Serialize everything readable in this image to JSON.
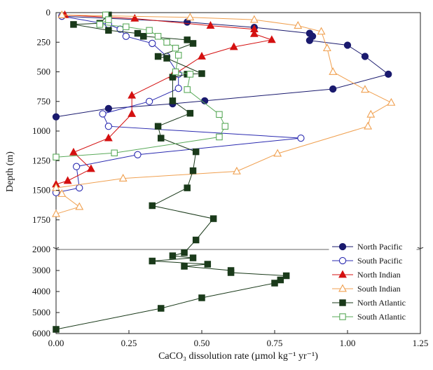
{
  "chart_data": {
    "type": "line",
    "title": "",
    "xlabel": "CaCO₃ dissolution rate (µmol kg⁻¹ yr⁻¹)",
    "ylabel": "Depth (m)",
    "xlim": [
      0,
      1.25
    ],
    "x_ticks": [
      "0.00",
      "0.25",
      "0.50",
      "0.75",
      "1.00",
      "1.25"
    ],
    "y_upper_range": [
      0,
      2000
    ],
    "y_upper_ticks": [
      "0",
      "250",
      "500",
      "750",
      "1000",
      "1250",
      "1500",
      "1750",
      "2000"
    ],
    "y_lower_range": [
      2000,
      6000
    ],
    "y_lower_ticks": [
      "3000",
      "4000",
      "5000",
      "6000"
    ],
    "y_axis_broken_at": 2000,
    "y_inverted": true,
    "grid": false,
    "legend_position": "bottom-right",
    "series": [
      {
        "name": "North Pacific",
        "marker": "circle-filled",
        "color": "#1a1a6e",
        "points": [
          [
            0.02,
            30
          ],
          [
            0.45,
            80
          ],
          [
            0.68,
            125
          ],
          [
            0.87,
            175
          ],
          [
            0.88,
            200
          ],
          [
            0.87,
            235
          ],
          [
            1.0,
            275
          ],
          [
            1.06,
            370
          ],
          [
            1.14,
            520
          ],
          [
            0.95,
            645
          ],
          [
            0.51,
            745
          ],
          [
            0.4,
            770
          ],
          [
            0.18,
            810
          ],
          [
            0.0,
            880
          ]
        ]
      },
      {
        "name": "South Pacific",
        "marker": "circle-open",
        "color": "#2a2ab0",
        "points": [
          [
            0.02,
            30
          ],
          [
            0.18,
            100
          ],
          [
            0.22,
            140
          ],
          [
            0.24,
            200
          ],
          [
            0.33,
            260
          ],
          [
            0.38,
            370
          ],
          [
            0.42,
            520
          ],
          [
            0.42,
            640
          ],
          [
            0.32,
            750
          ],
          [
            0.16,
            855
          ],
          [
            0.18,
            960
          ],
          [
            0.84,
            1060
          ],
          [
            0.28,
            1200
          ],
          [
            0.07,
            1300
          ],
          [
            0.08,
            1480
          ],
          [
            0.0,
            1520
          ]
        ]
      },
      {
        "name": "North Indian",
        "marker": "triangle-filled",
        "color": "#d41010",
        "points": [
          [
            0.03,
            20
          ],
          [
            0.27,
            50
          ],
          [
            0.53,
            110
          ],
          [
            0.68,
            140
          ],
          [
            0.68,
            180
          ],
          [
            0.74,
            230
          ],
          [
            0.61,
            290
          ],
          [
            0.5,
            370
          ],
          [
            0.4,
            530
          ],
          [
            0.26,
            700
          ],
          [
            0.26,
            855
          ],
          [
            0.18,
            1060
          ],
          [
            0.06,
            1180
          ],
          [
            0.12,
            1320
          ],
          [
            0.04,
            1420
          ],
          [
            0.0,
            1450
          ]
        ]
      },
      {
        "name": "South Indian",
        "marker": "triangle-open",
        "color": "#f0a050",
        "points": [
          [
            0.02,
            20
          ],
          [
            0.46,
            40
          ],
          [
            0.68,
            60
          ],
          [
            0.83,
            110
          ],
          [
            0.91,
            160
          ],
          [
            0.93,
            300
          ],
          [
            0.95,
            500
          ],
          [
            1.06,
            650
          ],
          [
            1.15,
            760
          ],
          [
            1.08,
            860
          ],
          [
            1.07,
            960
          ],
          [
            0.76,
            1190
          ],
          [
            0.62,
            1340
          ],
          [
            0.23,
            1400
          ],
          [
            0.0,
            1480
          ],
          [
            0.02,
            1530
          ],
          [
            0.08,
            1640
          ],
          [
            0.0,
            1700
          ]
        ]
      },
      {
        "name": "North Atlantic",
        "marker": "square-filled",
        "color": "#1a3a1a",
        "points": [
          [
            0.18,
            20
          ],
          [
            0.15,
            90
          ],
          [
            0.06,
            100
          ],
          [
            0.18,
            150
          ],
          [
            0.28,
            175
          ],
          [
            0.3,
            200
          ],
          [
            0.45,
            230
          ],
          [
            0.47,
            260
          ],
          [
            0.35,
            370
          ],
          [
            0.38,
            385
          ],
          [
            0.5,
            515
          ],
          [
            0.45,
            520
          ],
          [
            0.4,
            545
          ],
          [
            0.4,
            745
          ],
          [
            0.46,
            850
          ],
          [
            0.35,
            960
          ],
          [
            0.36,
            1060
          ],
          [
            0.48,
            1175
          ],
          [
            0.47,
            1335
          ],
          [
            0.45,
            1480
          ],
          [
            0.33,
            1630
          ],
          [
            0.54,
            1740
          ],
          [
            0.48,
            1920
          ],
          [
            0.44,
            2150
          ],
          [
            0.4,
            2300
          ],
          [
            0.47,
            2400
          ],
          [
            0.33,
            2550
          ],
          [
            0.52,
            2700
          ],
          [
            0.44,
            2800
          ],
          [
            0.6,
            3000
          ],
          [
            0.6,
            3100
          ],
          [
            0.79,
            3250
          ],
          [
            0.77,
            3450
          ],
          [
            0.75,
            3600
          ],
          [
            0.5,
            4300
          ],
          [
            0.36,
            4800
          ],
          [
            0.0,
            5800
          ]
        ]
      },
      {
        "name": "South Atlantic",
        "marker": "square-open",
        "color": "#5aaa5a",
        "points": [
          [
            0.17,
            20
          ],
          [
            0.18,
            60
          ],
          [
            0.15,
            100
          ],
          [
            0.24,
            120
          ],
          [
            0.32,
            150
          ],
          [
            0.35,
            200
          ],
          [
            0.38,
            250
          ],
          [
            0.41,
            300
          ],
          [
            0.42,
            360
          ],
          [
            0.41,
            500
          ],
          [
            0.46,
            520
          ],
          [
            0.45,
            650
          ],
          [
            0.56,
            860
          ],
          [
            0.58,
            960
          ],
          [
            0.56,
            1050
          ],
          [
            0.2,
            1185
          ],
          [
            0.0,
            1220
          ]
        ]
      }
    ]
  }
}
